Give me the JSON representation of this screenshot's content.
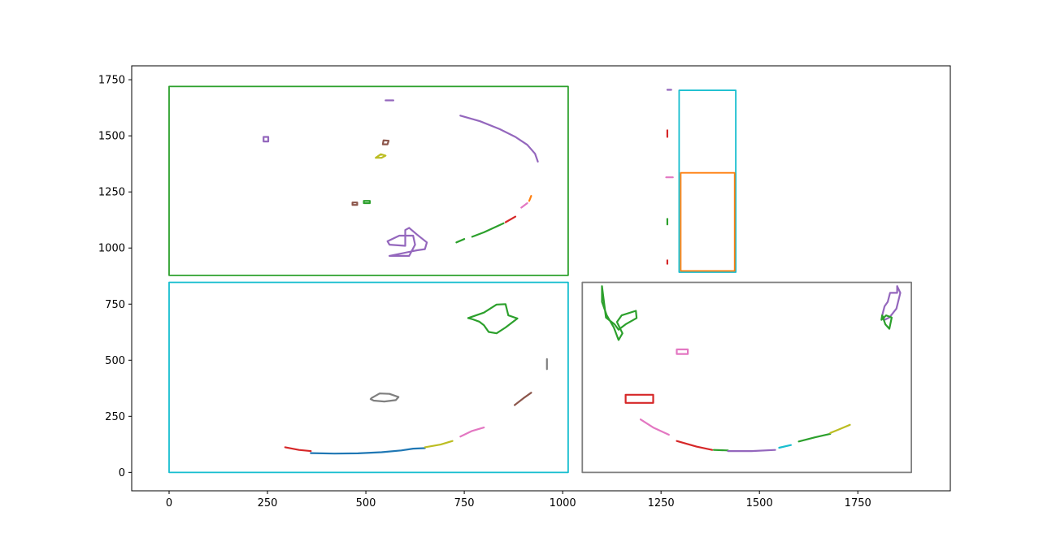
{
  "chart_data": {
    "type": "line",
    "title": "",
    "xlabel": "",
    "ylabel": "",
    "xlim": [
      -95,
      1985
    ],
    "ylim": [
      -82,
      1812
    ],
    "x_ticks": [
      0,
      250,
      500,
      750,
      1000,
      1250,
      1500,
      1750
    ],
    "y_ticks": [
      0,
      250,
      500,
      750,
      1000,
      1250,
      1500,
      1750
    ],
    "x_tick_labels": [
      "0",
      "250",
      "500",
      "750",
      "1000",
      "1250",
      "1500",
      "1750"
    ],
    "y_tick_labels": [
      "0",
      "250",
      "500",
      "750",
      "1000",
      "1250",
      "1500",
      "1750"
    ],
    "grid": false,
    "legend": "none",
    "series": [
      {
        "color": "#2ca02c",
        "kind": "rect",
        "x": [
          0,
          1014,
          1014,
          0,
          0
        ],
        "y": [
          878,
          878,
          1720,
          1720,
          878
        ]
      },
      {
        "color": "#17becf",
        "kind": "rect",
        "x": [
          0,
          1014,
          1014,
          0,
          0
        ],
        "y": [
          0,
          0,
          847,
          847,
          0
        ]
      },
      {
        "color": "#7f7f7f",
        "kind": "rect",
        "x": [
          1050,
          1886,
          1886,
          1050,
          1050
        ],
        "y": [
          0,
          0,
          847,
          847,
          0
        ]
      },
      {
        "color": "#17becf",
        "kind": "rect",
        "x": [
          1296,
          1440,
          1440,
          1296,
          1296
        ],
        "y": [
          892,
          892,
          1703,
          1703,
          892
        ]
      },
      {
        "color": "#ff7f0e",
        "kind": "rect",
        "x": [
          1300,
          1437,
          1437,
          1300,
          1300
        ],
        "y": [
          898,
          898,
          1335,
          1335,
          898
        ]
      },
      {
        "color": "#9467bd",
        "kind": "contour",
        "x": [
          740,
          790,
          840,
          880,
          910,
          930,
          937
        ],
        "y": [
          1590,
          1565,
          1530,
          1495,
          1460,
          1420,
          1385
        ]
      },
      {
        "color": "#ff7f0e",
        "kind": "contour",
        "x": [
          920,
          915
        ],
        "y": [
          1232,
          1210
        ]
      },
      {
        "color": "#e377c2",
        "kind": "contour",
        "x": [
          910,
          895
        ],
        "y": [
          1200,
          1180
        ]
      },
      {
        "color": "#d62728",
        "kind": "contour",
        "x": [
          880,
          855
        ],
        "y": [
          1140,
          1115
        ]
      },
      {
        "color": "#2ca02c",
        "kind": "contour",
        "x": [
          850,
          800,
          770
        ],
        "y": [
          1110,
          1070,
          1050
        ]
      },
      {
        "color": "#2ca02c",
        "kind": "contour",
        "x": [
          750,
          730
        ],
        "y": [
          1040,
          1025
        ]
      },
      {
        "color": "#9467bd",
        "kind": "contour",
        "x": [
          550,
          570
        ],
        "y": [
          1658,
          1658
        ]
      },
      {
        "color": "#9467bd",
        "kind": "contour",
        "x": [
          560,
          610,
          625,
          620,
          585,
          555,
          560,
          600,
          600,
          610,
          630,
          655,
          650,
          630,
          560
        ],
        "y": [
          965,
          965,
          1015,
          1055,
          1055,
          1030,
          1015,
          1010,
          1080,
          1090,
          1060,
          1025,
          995,
          990,
          965
        ]
      },
      {
        "color": "#8c564b",
        "kind": "contour",
        "x": [
          543,
          555,
          558,
          545,
          543
        ],
        "y": [
          1462,
          1462,
          1478,
          1480,
          1462
        ]
      },
      {
        "color": "#bcbd22",
        "kind": "contour",
        "x": [
          525,
          540,
          550,
          538,
          525
        ],
        "y": [
          1402,
          1402,
          1412,
          1418,
          1402
        ]
      },
      {
        "color": "#8c564b",
        "kind": "contour",
        "x": [
          466,
          478,
          478,
          466,
          466
        ],
        "y": [
          1192,
          1192,
          1203,
          1203,
          1192
        ]
      },
      {
        "color": "#2ca02c",
        "kind": "contour",
        "x": [
          495,
          510,
          510,
          495,
          495
        ],
        "y": [
          1200,
          1200,
          1210,
          1210,
          1200
        ]
      },
      {
        "color": "#9467bd",
        "kind": "contour",
        "x": [
          240,
          252,
          252,
          240,
          240
        ],
        "y": [
          1475,
          1475,
          1495,
          1495,
          1475
        ]
      },
      {
        "color": "#2ca02c",
        "kind": "contour",
        "x": [
          760,
          800,
          832,
          855,
          862,
          885,
          855,
          832,
          812,
          800,
          788,
          772,
          760
        ],
        "y": [
          688,
          712,
          748,
          750,
          700,
          686,
          646,
          620,
          626,
          656,
          672,
          682,
          688
        ]
      },
      {
        "color": "#1f77b4",
        "kind": "contour",
        "x": [
          360,
          420,
          480,
          540,
          590,
          620,
          650
        ],
        "y": [
          86,
          84,
          85,
          90,
          98,
          106,
          108
        ]
      },
      {
        "color": "#7f7f7f",
        "kind": "contour",
        "x": [
          515,
          535,
          560,
          583,
          576,
          547,
          520,
          512,
          515
        ],
        "y": [
          332,
          352,
          350,
          336,
          322,
          316,
          320,
          327,
          332
        ]
      },
      {
        "color": "#bcbd22",
        "kind": "contour",
        "x": [
          650,
          690,
          720
        ],
        "y": [
          112,
          124,
          140
        ]
      },
      {
        "color": "#e377c2",
        "kind": "contour",
        "x": [
          740,
          770,
          800
        ],
        "y": [
          160,
          185,
          200
        ]
      },
      {
        "color": "#8c564b",
        "kind": "contour",
        "x": [
          878,
          900,
          920
        ],
        "y": [
          300,
          330,
          355
        ]
      },
      {
        "color": "#7f7f7f",
        "kind": "contour",
        "x": [
          960,
          960
        ],
        "y": [
          460,
          505
        ]
      },
      {
        "color": "#d62728",
        "kind": "contour",
        "x": [
          295,
          330,
          360
        ],
        "y": [
          112,
          100,
          95
        ]
      },
      {
        "color": "#2ca02c",
        "kind": "contour",
        "x": [
          1100,
          1100,
          1112,
          1130,
          1142,
          1152,
          1138,
          1150,
          1186,
          1188,
          1160,
          1142,
          1132,
          1110,
          1100
        ],
        "y": [
          830,
          760,
          700,
          646,
          590,
          620,
          670,
          700,
          720,
          688,
          660,
          636,
          660,
          690,
          830
        ]
      },
      {
        "color": "#9467bd",
        "kind": "contour",
        "x": [
          1850,
          1850,
          1832,
          1826,
          1818,
          1812,
          1818,
          1830,
          1848,
          1858,
          1850
        ],
        "y": [
          830,
          800,
          800,
          760,
          740,
          700,
          680,
          690,
          730,
          800,
          830
        ]
      },
      {
        "color": "#2ca02c",
        "kind": "contour",
        "x": [
          1812,
          1820,
          1830,
          1836,
          1822,
          1810,
          1812
        ],
        "y": [
          700,
          660,
          640,
          690,
          700,
          680,
          700
        ]
      },
      {
        "color": "#d62728",
        "kind": "contour",
        "x": [
          1160,
          1230,
          1230,
          1160,
          1160
        ],
        "y": [
          310,
          310,
          346,
          346,
          310
        ]
      },
      {
        "color": "#e377c2",
        "kind": "contour",
        "x": [
          1290,
          1318,
          1318,
          1290,
          1290
        ],
        "y": [
          528,
          528,
          548,
          548,
          528
        ]
      },
      {
        "color": "#e377c2",
        "kind": "contour",
        "x": [
          1198,
          1230,
          1270
        ],
        "y": [
          236,
          200,
          168
        ]
      },
      {
        "color": "#d62728",
        "kind": "contour",
        "x": [
          1290,
          1340,
          1380
        ],
        "y": [
          140,
          115,
          100
        ]
      },
      {
        "color": "#2ca02c",
        "kind": "contour",
        "x": [
          1384,
          1420
        ],
        "y": [
          100,
          98
        ]
      },
      {
        "color": "#9467bd",
        "kind": "contour",
        "x": [
          1420,
          1480,
          1540
        ],
        "y": [
          95,
          95,
          100
        ]
      },
      {
        "color": "#17becf",
        "kind": "contour",
        "x": [
          1550,
          1580
        ],
        "y": [
          110,
          122
        ]
      },
      {
        "color": "#2ca02c",
        "kind": "contour",
        "x": [
          1600,
          1640,
          1680
        ],
        "y": [
          138,
          156,
          172
        ]
      },
      {
        "color": "#bcbd22",
        "kind": "contour",
        "x": [
          1680,
          1700,
          1730
        ],
        "y": [
          176,
          190,
          212
        ]
      },
      {
        "color": "#d62728",
        "kind": "contour",
        "x": [
          1266,
          1266
        ],
        "y": [
          1495,
          1525
        ]
      },
      {
        "color": "#e377c2",
        "kind": "contour",
        "x": [
          1263,
          1280
        ],
        "y": [
          1315,
          1315
        ]
      },
      {
        "color": "#2ca02c",
        "kind": "contour",
        "x": [
          1266,
          1266
        ],
        "y": [
          1105,
          1130
        ]
      },
      {
        "color": "#d62728",
        "kind": "contour",
        "x": [
          1266,
          1266
        ],
        "y": [
          930,
          945
        ]
      },
      {
        "color": "#9467bd",
        "kind": "contour",
        "x": [
          1266,
          1276
        ],
        "y": [
          1705,
          1705
        ]
      }
    ]
  }
}
